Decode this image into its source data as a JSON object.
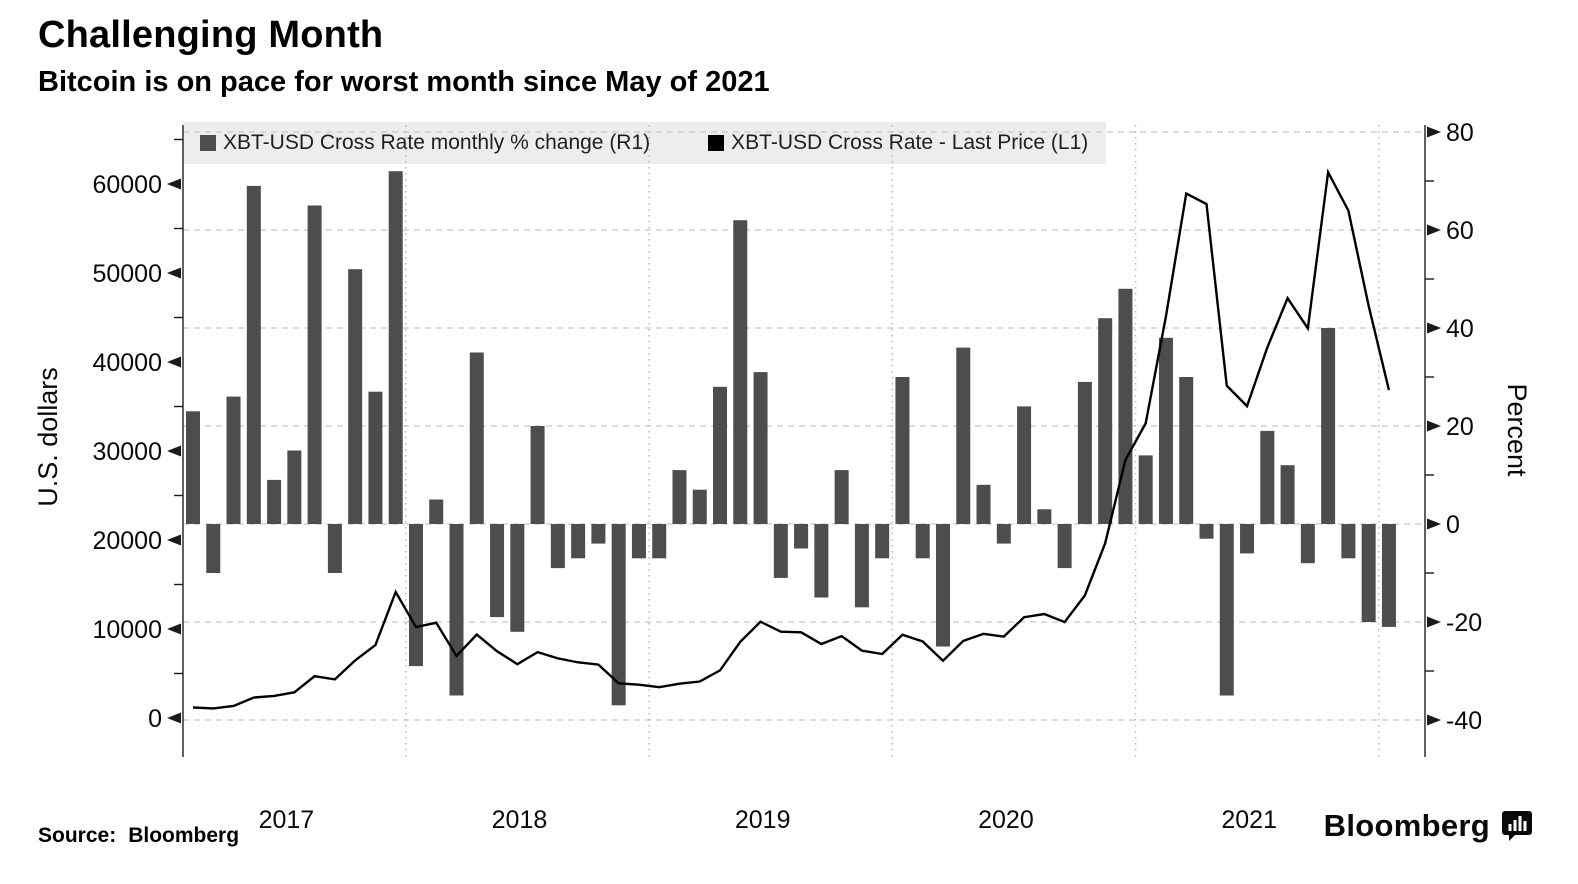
{
  "header": {
    "title": "Challenging Month",
    "subtitle": "Bitcoin is on pace for worst month since May of 2021"
  },
  "legend": {
    "items": [
      {
        "label": "XBT-USD Cross Rate monthly % change (R1)",
        "color": "#4d4d4d"
      },
      {
        "label": "XBT-USD Cross Rate - Last Price (L1)",
        "color": "#000000"
      }
    ]
  },
  "footer": {
    "source_label": "Source:",
    "source_value": "Bloomberg",
    "brand": "Bloomberg"
  },
  "chart_data": {
    "type": "combo-bar-line",
    "title": "Challenging Month",
    "subtitle": "Bitcoin is on pace for worst month since May of 2021",
    "months": [
      "Feb 2017",
      "Mar 2017",
      "Apr 2017",
      "May 2017",
      "Jun 2017",
      "Jul 2017",
      "Aug 2017",
      "Sep 2017",
      "Oct 2017",
      "Nov 2017",
      "Dec 2017",
      "Jan 2018",
      "Feb 2018",
      "Mar 2018",
      "Apr 2018",
      "May 2018",
      "Jun 2018",
      "Jul 2018",
      "Aug 2018",
      "Sep 2018",
      "Oct 2018",
      "Nov 2018",
      "Dec 2018",
      "Jan 2019",
      "Feb 2019",
      "Mar 2019",
      "Apr 2019",
      "May 2019",
      "Jun 2019",
      "Jul 2019",
      "Aug 2019",
      "Sep 2019",
      "Oct 2019",
      "Nov 2019",
      "Dec 2019",
      "Jan 2020",
      "Feb 2020",
      "Mar 2020",
      "Apr 2020",
      "May 2020",
      "Jun 2020",
      "Jul 2020",
      "Aug 2020",
      "Sep 2020",
      "Oct 2020",
      "Nov 2020",
      "Dec 2020",
      "Jan 2021",
      "Feb 2021",
      "Mar 2021",
      "Apr 2021",
      "May 2021",
      "Jun 2021",
      "Jul 2021",
      "Aug 2021",
      "Sep 2021",
      "Oct 2021",
      "Nov 2021",
      "Dec 2021",
      "Jan 2022"
    ],
    "series": [
      {
        "name": "XBT-USD Cross Rate monthly % change (R1)",
        "type": "bar",
        "axis": "right",
        "unit": "%",
        "color": "#4d4d4d",
        "values": [
          23,
          -10,
          26,
          69,
          9,
          15,
          65,
          -10,
          52,
          27,
          72,
          -29,
          5,
          -35,
          35,
          -19,
          -22,
          20,
          -9,
          -7,
          -4,
          -37,
          -7,
          -7,
          11,
          7,
          28,
          62,
          31,
          -11,
          -5,
          -15,
          11,
          -17,
          -7,
          30,
          -7,
          -25,
          36,
          8,
          -4,
          24,
          3,
          -9,
          29,
          42,
          48,
          14,
          38,
          30,
          -3,
          -35,
          -6,
          19,
          12,
          -8,
          40,
          -7,
          -20,
          -21
        ]
      },
      {
        "name": "XBT-USD Cross Rate - Last Price (L1)",
        "type": "line",
        "axis": "left",
        "unit": "USD",
        "color": "#000000",
        "values": [
          1180,
          1080,
          1350,
          2300,
          2480,
          2880,
          4700,
          4340,
          6470,
          8200,
          14160,
          10220,
          10700,
          6970,
          9380,
          7500,
          6050,
          7400,
          6700,
          6250,
          6000,
          3900,
          3740,
          3460,
          3850,
          4100,
          5350,
          8560,
          10820,
          9700,
          9630,
          8310,
          9200,
          7570,
          7190,
          9350,
          8600,
          6440,
          8660,
          9460,
          9140,
          11320,
          11680,
          10780,
          13780,
          19630,
          29000,
          33110,
          45140,
          58920,
          57750,
          37330,
          35040,
          41630,
          47170,
          43790,
          61320,
          57010,
          46310,
          36850
        ]
      }
    ],
    "left_axis": {
      "label": "U.S. dollars",
      "ticks": [
        0,
        10000,
        20000,
        30000,
        40000,
        50000,
        60000
      ],
      "minor_step": 5000
    },
    "right_axis": {
      "label": "Percent",
      "ticks": [
        -40,
        -20,
        0,
        20,
        40,
        60,
        80
      ],
      "minor_step": 10,
      "range": [
        -48,
        84
      ]
    },
    "x_axis": {
      "year_labels": [
        "2017",
        "2018",
        "2019",
        "2020",
        "2021"
      ]
    },
    "style": {
      "bar_color": "#4d4d4d",
      "line_color": "#000000",
      "axis_color": "#3a3a3a",
      "grid_color": "#c8c8c8",
      "year_grid_color": "#b5b5b5",
      "legend_bg": "#ededed",
      "grid": "dashed-horizontal-on-percent-ticks, dotted-vertical-on-year-starts",
      "legend_position": "top-inside"
    }
  }
}
